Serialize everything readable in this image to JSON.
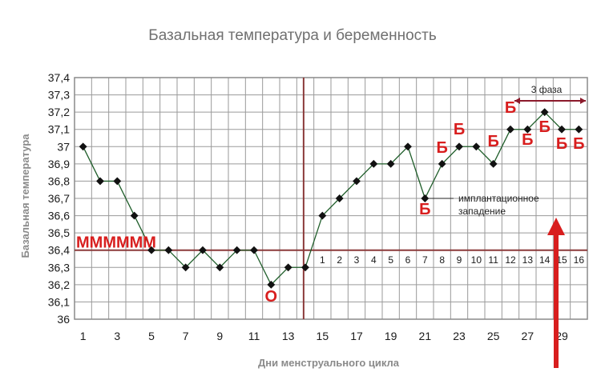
{
  "chart_data": {
    "type": "line",
    "title": "Базальная температура и беременность",
    "xlabel": "Дни менструального цикла",
    "ylabel": "Базальная температура",
    "xlim": [
      1,
      30
    ],
    "ylim": [
      36.0,
      37.4
    ],
    "y_ticks": [
      "37,4",
      "37,3",
      "37,2",
      "37,1",
      "37",
      "36,9",
      "36,8",
      "36,7",
      "36,6",
      "36,5",
      "36,4",
      "36,3",
      "36,2",
      "36,1",
      "36"
    ],
    "x_tick_labels": [
      "1",
      "3",
      "5",
      "7",
      "9",
      "11",
      "13",
      "15",
      "17",
      "19",
      "21",
      "23",
      "25",
      "27",
      "29"
    ],
    "grid": true,
    "series": [
      {
        "x": [
          1,
          2,
          3,
          4,
          5,
          6,
          7,
          8,
          9,
          10,
          11,
          12,
          13,
          14,
          15,
          16,
          17,
          18,
          19,
          20,
          21,
          22,
          23,
          24,
          25,
          26,
          27,
          28,
          29,
          30
        ],
        "values": [
          37.0,
          36.8,
          36.8,
          36.6,
          36.4,
          36.4,
          36.3,
          36.4,
          36.3,
          36.4,
          36.4,
          36.2,
          36.3,
          36.3,
          36.6,
          36.7,
          36.8,
          36.9,
          36.9,
          37.0,
          36.7,
          36.9,
          37.0,
          37.0,
          36.9,
          37.1,
          37.1,
          37.2,
          37.1,
          37.1
        ],
        "color": "#1f5e2a"
      }
    ],
    "reference_line": {
      "y": 36.4,
      "color": "#8b3a3a"
    },
    "ovulation_line": {
      "x": 14.4,
      "color": "#8b3a3a"
    },
    "phase_day_numbers": [
      "1",
      "2",
      "3",
      "4",
      "5",
      "6",
      "7",
      "8",
      "9",
      "10",
      "11",
      "12",
      "13",
      "14",
      "15",
      "16"
    ],
    "annotations": {
      "m_marks": "ММММММ",
      "ovulation": "О",
      "b_label": "Б",
      "implantation": [
        "имплантационное",
        "западение"
      ],
      "phase3": "3 фаза"
    },
    "colors": {
      "accent_red": "#d81e1e",
      "line": "#1f5e2a",
      "grid": "#9a9a9a",
      "reference": "#8b3a3a"
    }
  }
}
